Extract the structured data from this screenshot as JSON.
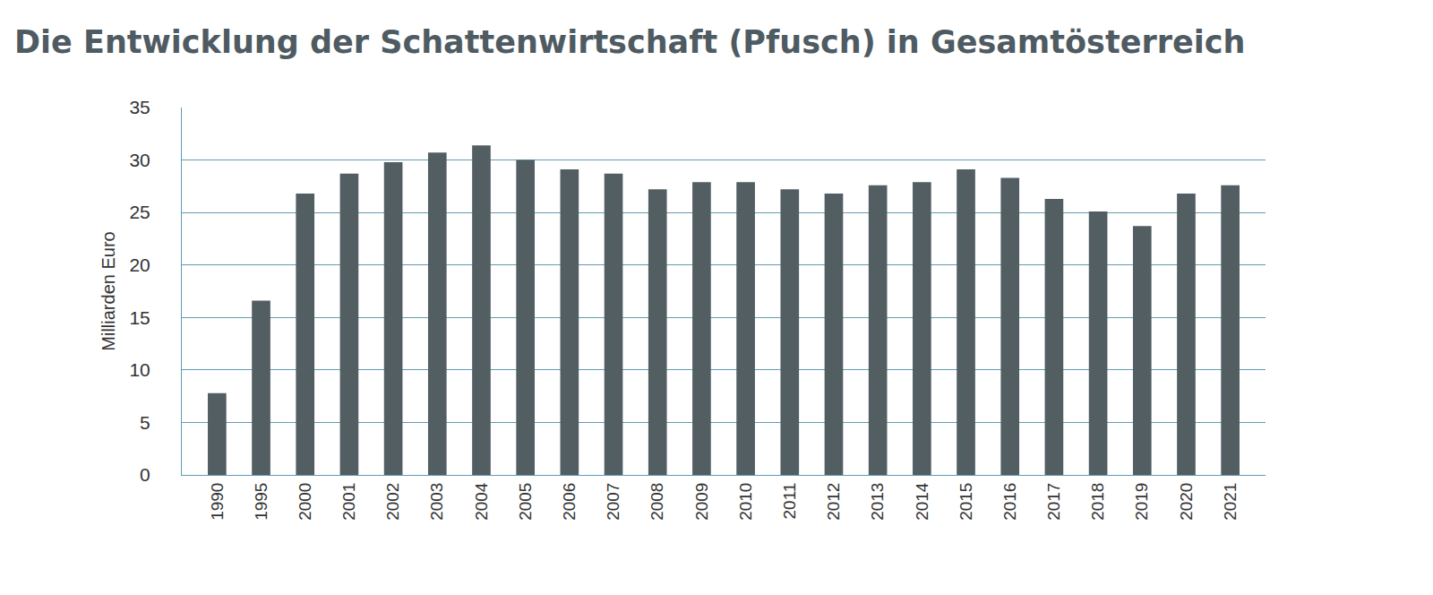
{
  "chart_data": {
    "type": "bar",
    "title": "Die Entwicklung der Schattenwirtschaft (Pfusch) in Gesamtösterreich",
    "y_label": "Milliarden Euro",
    "categories": [
      "1990",
      "1995",
      "2000",
      "2001",
      "2002",
      "2003",
      "2004",
      "2005",
      "2006",
      "2007",
      "2008",
      "2009",
      "2010",
      "2011",
      "2012",
      "2013",
      "2014",
      "2015",
      "2016",
      "2017",
      "2018",
      "2019",
      "2020",
      "2021"
    ],
    "values": [
      7.8,
      16.6,
      26.8,
      28.7,
      29.8,
      30.7,
      31.4,
      30.0,
      29.1,
      28.7,
      27.2,
      27.9,
      27.9,
      27.2,
      26.8,
      27.6,
      27.9,
      29.1,
      28.3,
      26.3,
      25.1,
      23.7,
      26.8,
      27.6
    ],
    "color": "#535e63",
    "ylim": [
      0,
      35
    ],
    "yticks": [
      0,
      5,
      10,
      15,
      20,
      25,
      30,
      35
    ],
    "grid": true
  }
}
